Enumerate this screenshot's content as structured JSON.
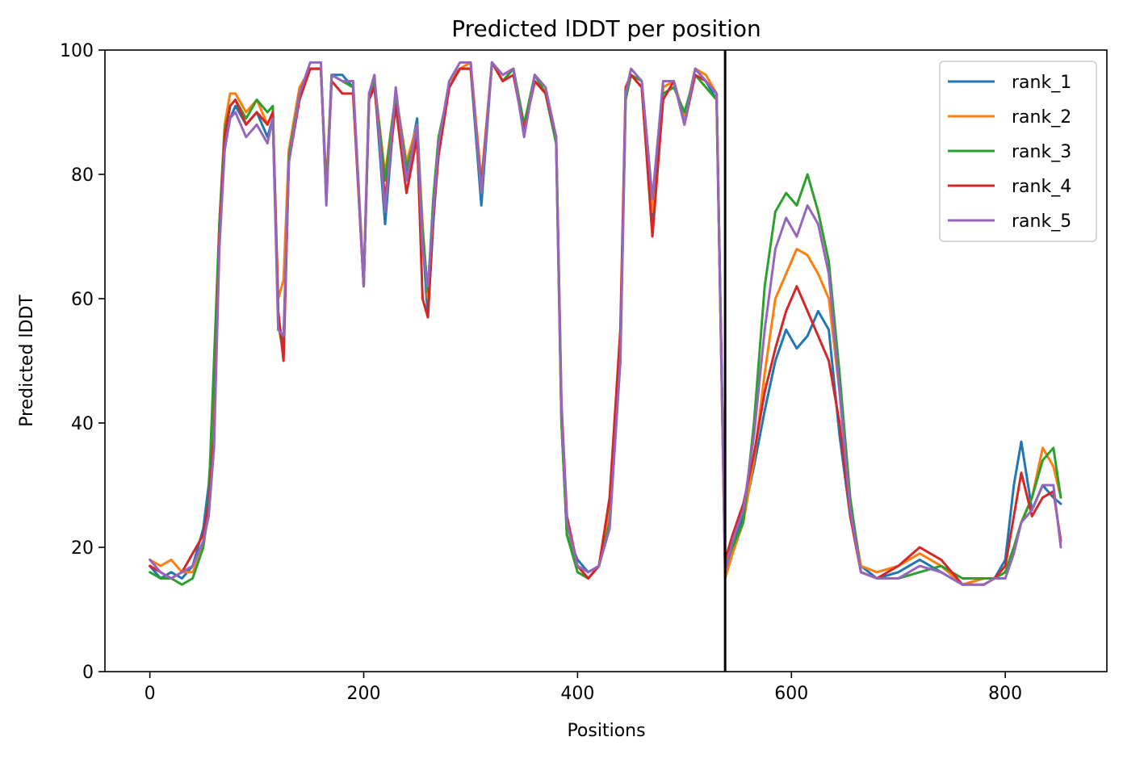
{
  "chart_data": {
    "type": "line",
    "title": "Predicted lDDT per position",
    "xlabel": "Positions",
    "ylabel": "Predicted lDDT",
    "xlim": [
      -42,
      895
    ],
    "ylim": [
      0,
      100
    ],
    "xticks": [
      0,
      200,
      400,
      600,
      800
    ],
    "yticks": [
      0,
      20,
      40,
      60,
      80,
      100
    ],
    "grid": false,
    "legend_position": "top-right",
    "separator_x": 538,
    "separator_color": "#000000",
    "series": [
      {
        "name": "rank_1",
        "color": "#1f77b4",
        "x": [
          0,
          10,
          20,
          30,
          40,
          50,
          55,
          60,
          65,
          70,
          75,
          80,
          90,
          100,
          110,
          115,
          120,
          125,
          130,
          140,
          150,
          160,
          165,
          170,
          180,
          190,
          200,
          205,
          210,
          220,
          230,
          240,
          250,
          255,
          260,
          265,
          270,
          280,
          290,
          300,
          310,
          320,
          330,
          340,
          350,
          360,
          370,
          380,
          385,
          390,
          400,
          410,
          420,
          430,
          440,
          445,
          450,
          460,
          470,
          480,
          490,
          500,
          510,
          520,
          530,
          538,
          545,
          555,
          565,
          575,
          585,
          595,
          605,
          615,
          625,
          635,
          645,
          655,
          665,
          680,
          700,
          720,
          740,
          760,
          780,
          790,
          800,
          808,
          815,
          825,
          835,
          845,
          852
        ],
        "y": [
          17,
          15,
          16,
          15,
          17,
          23,
          30,
          42,
          70,
          84,
          89,
          91,
          88,
          90,
          86,
          89,
          57,
          52,
          82,
          93,
          97,
          97,
          77,
          96,
          96,
          94,
          62,
          92,
          95,
          72,
          93,
          80,
          89,
          70,
          57,
          72,
          84,
          95,
          97,
          97,
          75,
          98,
          95,
          97,
          87,
          96,
          93,
          85,
          40,
          22,
          18,
          16,
          17,
          25,
          52,
          93,
          96,
          94,
          72,
          94,
          95,
          89,
          97,
          95,
          92,
          16,
          20,
          25,
          33,
          42,
          50,
          55,
          52,
          54,
          58,
          55,
          38,
          25,
          17,
          15,
          16,
          18,
          16,
          14,
          15,
          15,
          18,
          30,
          37,
          26,
          30,
          28,
          27
        ]
      },
      {
        "name": "rank_2",
        "color": "#ff7f0e",
        "x": [
          0,
          10,
          20,
          30,
          40,
          50,
          55,
          60,
          65,
          70,
          75,
          80,
          90,
          100,
          110,
          115,
          120,
          125,
          130,
          140,
          150,
          160,
          165,
          170,
          180,
          190,
          200,
          205,
          210,
          220,
          230,
          240,
          250,
          255,
          260,
          265,
          270,
          280,
          290,
          300,
          310,
          320,
          330,
          340,
          350,
          360,
          370,
          380,
          385,
          390,
          400,
          410,
          420,
          430,
          440,
          445,
          450,
          460,
          470,
          480,
          490,
          500,
          510,
          520,
          530,
          538,
          545,
          555,
          565,
          575,
          585,
          595,
          605,
          615,
          625,
          635,
          645,
          655,
          665,
          680,
          700,
          720,
          740,
          760,
          780,
          790,
          800,
          808,
          815,
          825,
          835,
          845,
          852
        ],
        "y": [
          18,
          17,
          18,
          16,
          16,
          20,
          26,
          40,
          72,
          88,
          93,
          93,
          90,
          92,
          88,
          90,
          60,
          63,
          84,
          94,
          97,
          97,
          78,
          96,
          95,
          95,
          63,
          93,
          95,
          80,
          93,
          82,
          88,
          72,
          60,
          74,
          85,
          95,
          97,
          98,
          79,
          98,
          96,
          97,
          88,
          96,
          94,
          86,
          40,
          22,
          17,
          15,
          17,
          26,
          52,
          94,
          96,
          94,
          74,
          94,
          95,
          89,
          97,
          96,
          93,
          15,
          19,
          24,
          34,
          48,
          60,
          64,
          68,
          67,
          64,
          60,
          45,
          27,
          17,
          16,
          17,
          19,
          17,
          14,
          15,
          15,
          16,
          20,
          24,
          28,
          36,
          33,
          28
        ]
      },
      {
        "name": "rank_3",
        "color": "#2ca02c",
        "x": [
          0,
          10,
          20,
          30,
          40,
          50,
          55,
          60,
          65,
          70,
          75,
          80,
          90,
          100,
          110,
          115,
          120,
          125,
          130,
          140,
          150,
          160,
          165,
          170,
          180,
          190,
          200,
          205,
          210,
          220,
          230,
          240,
          250,
          255,
          260,
          265,
          270,
          280,
          290,
          300,
          310,
          320,
          330,
          340,
          350,
          360,
          370,
          380,
          385,
          390,
          400,
          410,
          420,
          430,
          440,
          445,
          450,
          460,
          470,
          480,
          490,
          500,
          510,
          520,
          530,
          538,
          545,
          555,
          565,
          575,
          585,
          595,
          605,
          615,
          625,
          635,
          645,
          655,
          665,
          680,
          700,
          720,
          740,
          760,
          780,
          790,
          800,
          808,
          815,
          825,
          835,
          845,
          852
        ],
        "y": [
          16,
          15,
          15,
          14,
          15,
          20,
          28,
          50,
          72,
          87,
          91,
          92,
          89,
          92,
          90,
          91,
          56,
          51,
          83,
          93,
          97,
          97,
          77,
          96,
          95,
          94,
          62,
          92,
          95,
          79,
          93,
          81,
          87,
          71,
          61,
          76,
          86,
          94,
          97,
          97,
          77,
          98,
          95,
          97,
          88,
          96,
          93,
          85,
          40,
          22,
          16,
          15,
          17,
          24,
          50,
          92,
          96,
          95,
          76,
          93,
          94,
          90,
          96,
          94,
          92,
          17,
          20,
          24,
          40,
          62,
          74,
          77,
          75,
          80,
          74,
          66,
          48,
          28,
          16,
          15,
          15,
          16,
          17,
          15,
          15,
          15,
          16,
          20,
          24,
          28,
          34,
          36,
          28
        ]
      },
      {
        "name": "rank_4",
        "color": "#d62728",
        "x": [
          0,
          10,
          20,
          30,
          40,
          50,
          55,
          60,
          65,
          70,
          75,
          80,
          90,
          100,
          110,
          115,
          120,
          125,
          130,
          140,
          150,
          160,
          165,
          170,
          180,
          190,
          200,
          205,
          210,
          220,
          230,
          240,
          250,
          255,
          260,
          265,
          270,
          280,
          290,
          300,
          310,
          320,
          330,
          340,
          350,
          360,
          370,
          380,
          385,
          390,
          400,
          410,
          420,
          430,
          440,
          445,
          450,
          460,
          470,
          480,
          490,
          500,
          510,
          520,
          530,
          538,
          545,
          555,
          565,
          575,
          585,
          595,
          605,
          615,
          625,
          635,
          645,
          655,
          665,
          680,
          700,
          720,
          740,
          760,
          780,
          790,
          800,
          808,
          815,
          825,
          835,
          845,
          852
        ],
        "y": [
          17,
          16,
          15,
          16,
          19,
          22,
          27,
          38,
          70,
          86,
          91,
          92,
          88,
          90,
          88,
          90,
          58,
          50,
          82,
          92,
          97,
          97,
          76,
          95,
          93,
          93,
          62,
          92,
          94,
          76,
          91,
          77,
          86,
          60,
          57,
          73,
          83,
          94,
          97,
          97,
          78,
          98,
          95,
          96,
          87,
          95,
          93,
          86,
          43,
          25,
          17,
          15,
          17,
          28,
          55,
          94,
          96,
          94,
          70,
          92,
          95,
          88,
          96,
          95,
          93,
          18,
          22,
          27,
          35,
          45,
          52,
          58,
          62,
          58,
          54,
          50,
          40,
          25,
          16,
          15,
          17,
          20,
          18,
          14,
          14,
          15,
          17,
          25,
          32,
          25,
          28,
          29,
          21
        ]
      },
      {
        "name": "rank_5",
        "color": "#9467bd",
        "x": [
          0,
          10,
          20,
          30,
          40,
          50,
          55,
          60,
          65,
          70,
          75,
          80,
          90,
          100,
          110,
          115,
          120,
          125,
          130,
          140,
          150,
          160,
          165,
          170,
          180,
          190,
          200,
          205,
          210,
          220,
          230,
          240,
          250,
          255,
          260,
          265,
          270,
          280,
          290,
          300,
          310,
          320,
          330,
          340,
          350,
          360,
          370,
          380,
          385,
          390,
          400,
          410,
          420,
          430,
          440,
          445,
          450,
          460,
          470,
          480,
          490,
          500,
          510,
          520,
          530,
          538,
          545,
          555,
          565,
          575,
          585,
          595,
          605,
          615,
          625,
          635,
          645,
          655,
          665,
          680,
          700,
          720,
          740,
          760,
          780,
          790,
          800,
          808,
          815,
          825,
          835,
          845,
          852
        ],
        "y": [
          18,
          16,
          15,
          16,
          17,
          21,
          25,
          36,
          68,
          84,
          89,
          90,
          86,
          88,
          85,
          89,
          55,
          54,
          82,
          93,
          98,
          98,
          75,
          96,
          95,
          95,
          62,
          93,
          96,
          74,
          94,
          79,
          88,
          68,
          62,
          74,
          85,
          95,
          98,
          98,
          77,
          98,
          96,
          97,
          86,
          96,
          94,
          86,
          42,
          24,
          17,
          16,
          17,
          23,
          50,
          93,
          97,
          95,
          76,
          95,
          95,
          88,
          97,
          95,
          93,
          16,
          21,
          26,
          38,
          55,
          68,
          73,
          70,
          75,
          72,
          64,
          45,
          26,
          16,
          15,
          15,
          17,
          16,
          14,
          14,
          15,
          15,
          19,
          24,
          26,
          30,
          30,
          20
        ]
      }
    ]
  }
}
